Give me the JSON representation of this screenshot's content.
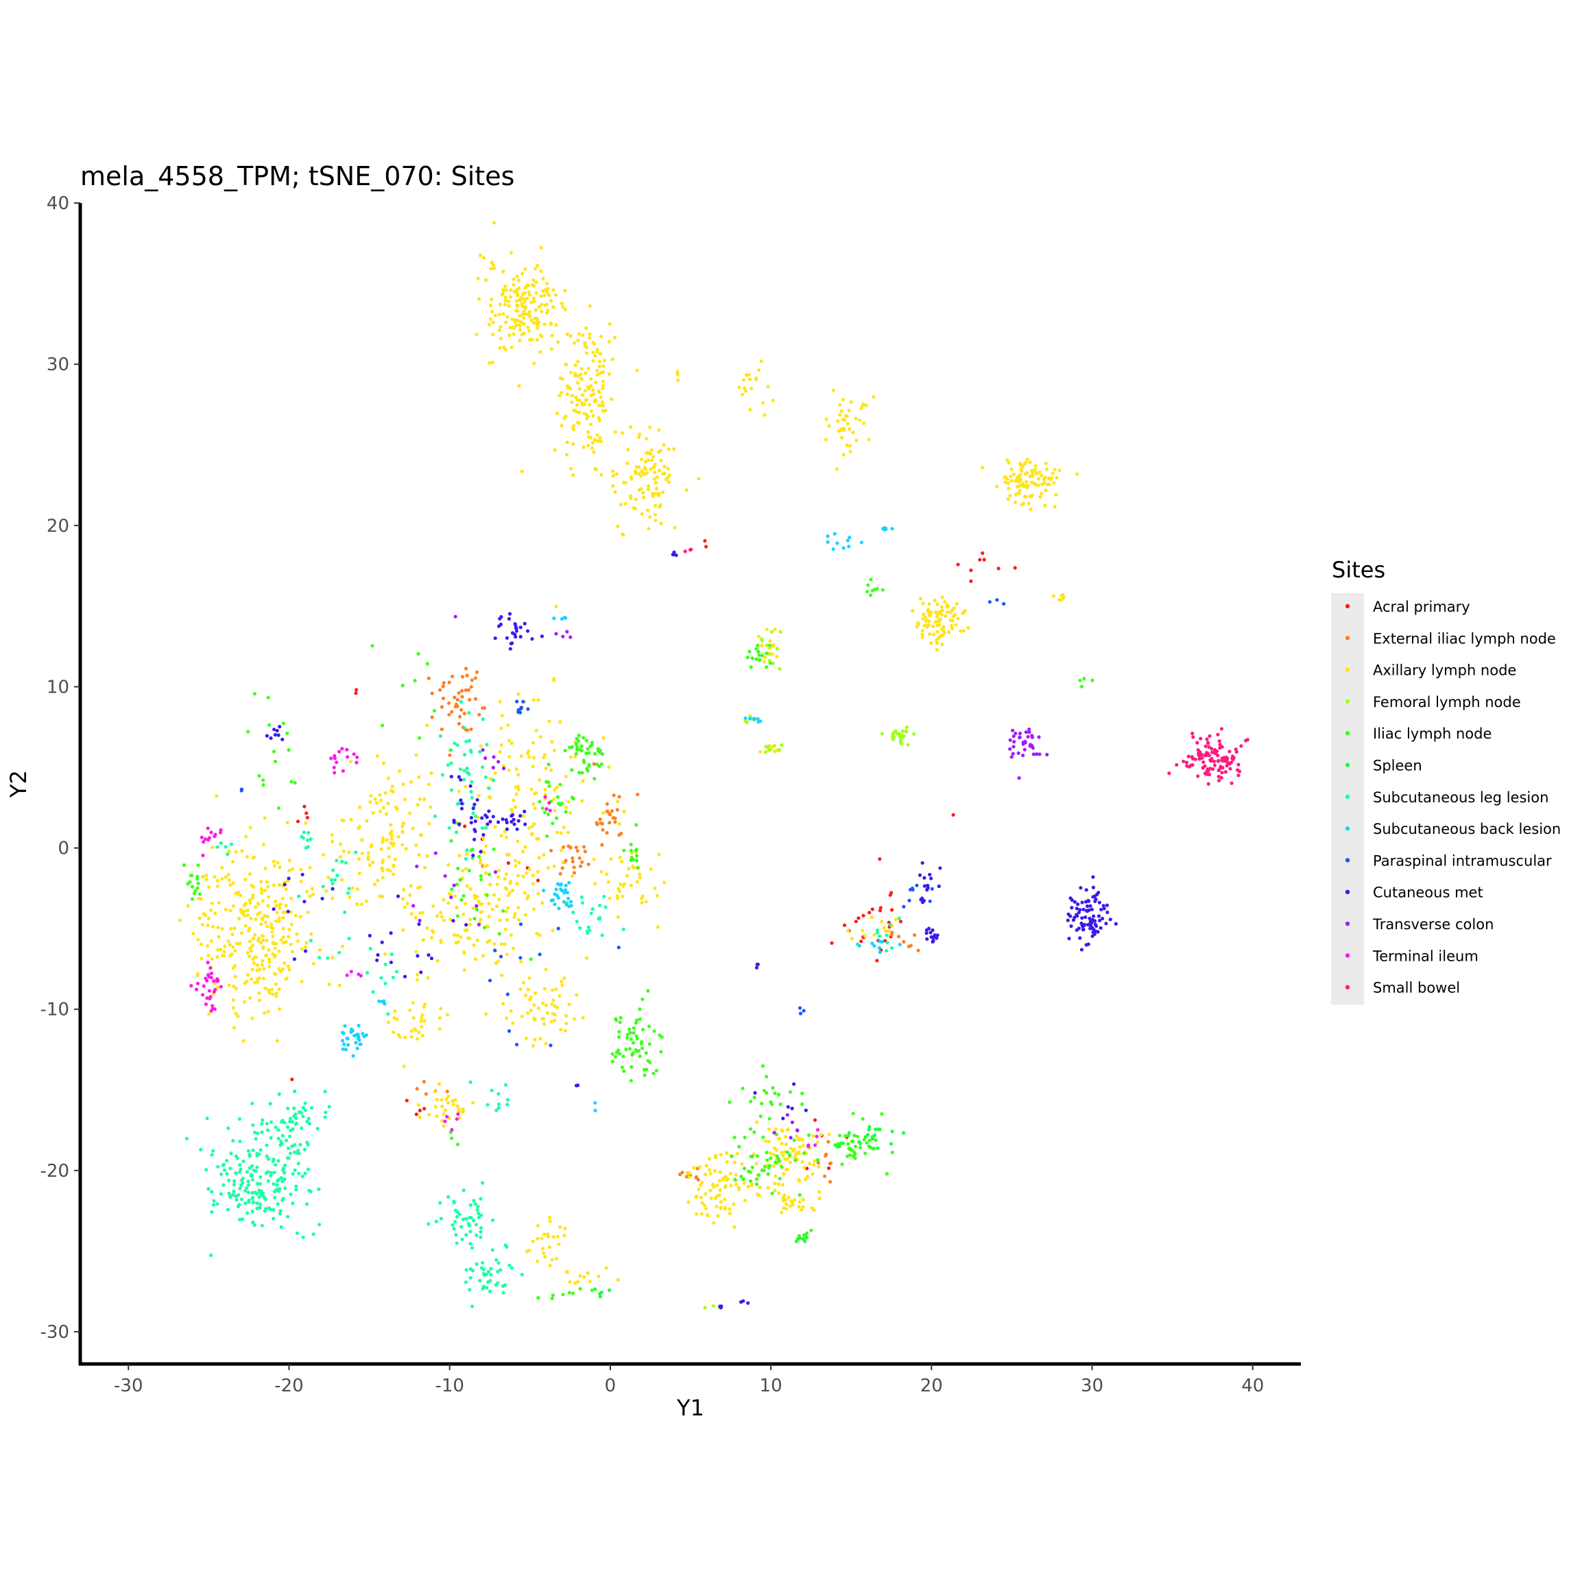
{
  "chart_data": {
    "type": "scatter",
    "title": "mela_4558_TPM; tSNE_070: Sites",
    "xlabel": "Y1",
    "ylabel": "Y2",
    "xlim": [
      -33,
      43
    ],
    "ylim": [
      -32,
      40
    ],
    "x_ticks": [
      -30,
      -20,
      -10,
      0,
      10,
      20,
      30,
      40
    ],
    "y_ticks": [
      -30,
      -20,
      -10,
      0,
      10,
      20,
      30,
      40
    ],
    "grid": false,
    "legend": {
      "title": "Sites",
      "placement": "right"
    },
    "series": [
      {
        "name": "Acral primary",
        "color": "#ff1a1a",
        "clusters": [
          [
            16.5,
            -4.5,
            1.2,
            1.8,
            25
          ],
          [
            23,
            17,
            1.0,
            0.8,
            8
          ],
          [
            -16,
            9.8,
            0.3,
            0.3,
            2
          ],
          [
            -19,
            2.5,
            0.6,
            0.6,
            4
          ],
          [
            21.5,
            2.2,
            0.2,
            0.2,
            1
          ],
          [
            6,
            18.8,
            0.3,
            0.2,
            2
          ],
          [
            -20,
            -14.5,
            0.2,
            0.2,
            1
          ],
          [
            -7,
            -1,
            1.5,
            1.5,
            6
          ],
          [
            -12,
            -16,
            0.8,
            0.8,
            4
          ],
          [
            13,
            -19,
            1.5,
            1.5,
            5
          ]
        ]
      },
      {
        "name": "External iliac lymph node",
        "color": "#ff7f1f",
        "clusters": [
          [
            -9.5,
            9,
            1.3,
            1.6,
            45
          ],
          [
            0,
            2,
            0.9,
            1.2,
            25
          ],
          [
            -2,
            -0.8,
            1.0,
            0.7,
            20
          ],
          [
            5,
            -20.3,
            0.6,
            0.4,
            10
          ],
          [
            13.5,
            -19.5,
            0.3,
            0.8,
            8
          ],
          [
            18.5,
            -5.5,
            0.8,
            0.6,
            8
          ],
          [
            -11,
            -15,
            0.8,
            0.5,
            5
          ]
        ]
      },
      {
        "name": "Axillary lymph node",
        "color": "#ffe41a",
        "clusters": [
          [
            -5.5,
            33.5,
            1.5,
            2.0,
            170
          ],
          [
            -1.5,
            28,
            1.3,
            3.0,
            150
          ],
          [
            2.5,
            23,
            1.2,
            2.0,
            100
          ],
          [
            26,
            22.8,
            1.2,
            0.9,
            100
          ],
          [
            20.5,
            14,
            1.2,
            1.0,
            90
          ],
          [
            8.5,
            28.5,
            0.8,
            1.0,
            18
          ],
          [
            14.5,
            26.2,
            1.0,
            1.2,
            40
          ],
          [
            28,
            15.6,
            0.3,
            0.3,
            6
          ],
          [
            4.2,
            29.5,
            0.1,
            0.3,
            4
          ],
          [
            -22,
            -5,
            2.5,
            3.5,
            300
          ],
          [
            -14,
            1,
            2.5,
            3.5,
            120
          ],
          [
            -5,
            3.5,
            2.5,
            4.0,
            120
          ],
          [
            -8,
            -4,
            3.0,
            3.0,
            150
          ],
          [
            -4,
            -10,
            1.5,
            1.5,
            50
          ],
          [
            -12,
            -11,
            1.0,
            1.0,
            30
          ],
          [
            -10,
            -16,
            1.0,
            0.8,
            30
          ],
          [
            -4,
            -24.5,
            0.8,
            1.0,
            25
          ],
          [
            -1.5,
            -26.8,
            1.2,
            0.3,
            12
          ],
          [
            6.5,
            -21,
            1.5,
            1.5,
            80
          ],
          [
            11,
            -19,
            1.5,
            1.5,
            80
          ],
          [
            11,
            -22,
            1.0,
            0.5,
            25
          ],
          [
            1.5,
            -2,
            1.5,
            1.5,
            40
          ],
          [
            16.5,
            -5,
            1.0,
            0.5,
            12
          ],
          [
            10,
            12.5,
            0.5,
            0.8,
            15
          ],
          [
            10,
            6.2,
            0.5,
            0.2,
            8
          ],
          [
            -7.5,
            30,
            0.1,
            0.2,
            2
          ],
          [
            -5.5,
            23.5,
            0.1,
            0.2,
            2
          ]
        ]
      },
      {
        "name": "Femoral lymph node",
        "color": "#a2ff1a",
        "clusters": [
          [
            18,
            7,
            0.6,
            0.4,
            25
          ],
          [
            10,
            12.5,
            0.5,
            0.8,
            10
          ],
          [
            10,
            6.2,
            0.6,
            0.3,
            8
          ],
          [
            8.5,
            8,
            0.3,
            0.2,
            5
          ],
          [
            6.5,
            -28.5,
            0.5,
            0.1,
            3
          ]
        ]
      },
      {
        "name": "Iliac lymph node",
        "color": "#3dff1a",
        "clusters": [
          [
            -1.5,
            6,
            0.8,
            1.0,
            40
          ],
          [
            1.5,
            -12,
            1.0,
            1.5,
            60
          ],
          [
            9.5,
            -19.5,
            1.5,
            1.2,
            45
          ],
          [
            15.5,
            -18.5,
            1.5,
            1.0,
            40
          ],
          [
            -3.5,
            3,
            0.8,
            1.5,
            20
          ],
          [
            -26,
            -2,
            0.5,
            0.8,
            15
          ],
          [
            9.5,
            12,
            0.6,
            0.5,
            15
          ],
          [
            16.5,
            16,
            0.5,
            0.3,
            8
          ],
          [
            1.5,
            0,
            0.5,
            1.0,
            12
          ],
          [
            12,
            -24,
            0.3,
            0.2,
            6
          ],
          [
            -2,
            -27.5,
            0.8,
            0.2,
            5
          ],
          [
            10,
            -15,
            1.5,
            1.0,
            20
          ],
          [
            29.5,
            10.3,
            0.3,
            0.2,
            4
          ],
          [
            -8,
            -3,
            1.5,
            2.5,
            25
          ],
          [
            -20.5,
            7,
            1.5,
            3.0,
            15
          ],
          [
            -13,
            10,
            1.5,
            2.0,
            8
          ],
          [
            -10,
            -18,
            0.3,
            0.3,
            3
          ],
          [
            -4,
            -28,
            0.5,
            0.2,
            3
          ]
        ]
      },
      {
        "name": "Spleen",
        "color": "#1aff3c",
        "clusters": [
          [
            16,
            -18,
            1.0,
            0.6,
            20
          ],
          [
            12,
            -24.2,
            0.4,
            0.2,
            6
          ],
          [
            -1,
            -27.5,
            0.5,
            0.2,
            5
          ]
        ]
      },
      {
        "name": "Subcutaneous leg lesion",
        "color": "#1affa5",
        "clusters": [
          [
            -22,
            -21,
            2.0,
            2.0,
            180
          ],
          [
            -20,
            -17.5,
            1.2,
            1.5,
            70
          ],
          [
            -9,
            -23,
            1.2,
            1.2,
            45
          ],
          [
            -7.5,
            -26.5,
            1.2,
            1.2,
            40
          ],
          [
            -9,
            4,
            1.0,
            3.0,
            45
          ],
          [
            -1,
            -4.5,
            1.0,
            1.0,
            20
          ],
          [
            -17,
            -3,
            1.5,
            3.0,
            20
          ],
          [
            -14,
            -8,
            1.0,
            1.5,
            10
          ],
          [
            -7,
            -16,
            1.0,
            1.0,
            10
          ],
          [
            -19,
            0.5,
            0.5,
            0.5,
            8
          ],
          [
            17,
            -5.5,
            1.0,
            0.8,
            10
          ],
          [
            -24,
            0,
            0.5,
            0.5,
            5
          ]
        ]
      },
      {
        "name": "Subcutaneous back lesion",
        "color": "#1ad2ff",
        "clusters": [
          [
            -16,
            -11.8,
            0.6,
            0.6,
            30
          ],
          [
            -3,
            -3,
            0.6,
            0.6,
            25
          ],
          [
            14.5,
            19,
            0.8,
            0.3,
            10
          ],
          [
            17,
            19.8,
            0.3,
            0.1,
            6
          ],
          [
            9,
            8,
            0.5,
            0.1,
            8
          ],
          [
            -3,
            14.2,
            0.4,
            0.1,
            4
          ],
          [
            -14,
            -9.5,
            0.3,
            0.3,
            4
          ],
          [
            17,
            -5.8,
            0.8,
            0.4,
            8
          ],
          [
            -1,
            -16,
            0.2,
            0.3,
            2
          ]
        ]
      },
      {
        "name": "Paraspinal intramuscular",
        "color": "#1a56ff",
        "clusters": [
          [
            -5.5,
            8.5,
            0.3,
            0.5,
            8
          ],
          [
            19,
            -3,
            0.8,
            0.5,
            8
          ],
          [
            12,
            -10,
            0.2,
            0.2,
            3
          ],
          [
            -23,
            3.5,
            0.2,
            0.2,
            2
          ],
          [
            24,
            15.3,
            0.3,
            0.2,
            3
          ],
          [
            -5,
            -8,
            3.0,
            4.0,
            12
          ]
        ]
      },
      {
        "name": "Cutaneous met",
        "color": "#3d1aeb",
        "clusters": [
          [
            29.8,
            -4.2,
            0.8,
            1.2,
            90
          ],
          [
            20,
            -5.5,
            0.3,
            0.4,
            15
          ],
          [
            19.5,
            -2,
            0.6,
            1.2,
            15
          ],
          [
            -6,
            13.5,
            0.8,
            0.6,
            25
          ],
          [
            -6,
            1.5,
            0.6,
            0.6,
            15
          ],
          [
            -8.5,
            2.5,
            1.0,
            2.0,
            30
          ],
          [
            -21,
            7.3,
            0.4,
            0.4,
            8
          ],
          [
            4,
            18.2,
            0.2,
            0.1,
            4
          ],
          [
            9,
            -7.3,
            0.2,
            0.2,
            3
          ],
          [
            -2,
            -14.8,
            0.1,
            0.1,
            2
          ],
          [
            7,
            -28.5,
            0.3,
            0.1,
            3
          ],
          [
            8.3,
            -28.2,
            0.2,
            0.1,
            3
          ],
          [
            -13,
            -6,
            2.0,
            2.0,
            15
          ],
          [
            -20,
            -4,
            1.5,
            3.0,
            10
          ],
          [
            11,
            -16,
            1.0,
            1.0,
            6
          ]
        ]
      },
      {
        "name": "Transverse colon",
        "color": "#a41aff",
        "clusters": [
          [
            25.8,
            6.5,
            0.8,
            0.6,
            35
          ],
          [
            -10,
            -3,
            1.5,
            1.5,
            10
          ],
          [
            -7,
            5,
            1.0,
            1.0,
            6
          ],
          [
            -2.5,
            13.5,
            0.5,
            0.5,
            4
          ],
          [
            11,
            -17,
            1.0,
            1.0,
            6
          ],
          [
            -9.5,
            14.5,
            0.1,
            0.1,
            1
          ]
        ]
      },
      {
        "name": "Terminal ileum",
        "color": "#ff1ae4",
        "clusters": [
          [
            -25,
            -8.5,
            0.5,
            1.0,
            30
          ],
          [
            -25,
            0.3,
            0.5,
            0.5,
            12
          ],
          [
            -16.5,
            5.5,
            0.7,
            0.6,
            15
          ],
          [
            -16,
            -7.8,
            0.3,
            0.2,
            4
          ],
          [
            -10,
            -17,
            0.5,
            0.3,
            5
          ],
          [
            13,
            -18,
            0.5,
            0.5,
            5
          ],
          [
            -4,
            3,
            0.5,
            0.5,
            4
          ]
        ]
      },
      {
        "name": "Small bowel",
        "color": "#ff1a7f",
        "clusters": [
          [
            37.5,
            5.5,
            1.2,
            1.0,
            110
          ],
          [
            5,
            18.5,
            0.2,
            0.1,
            3
          ]
        ]
      }
    ]
  }
}
